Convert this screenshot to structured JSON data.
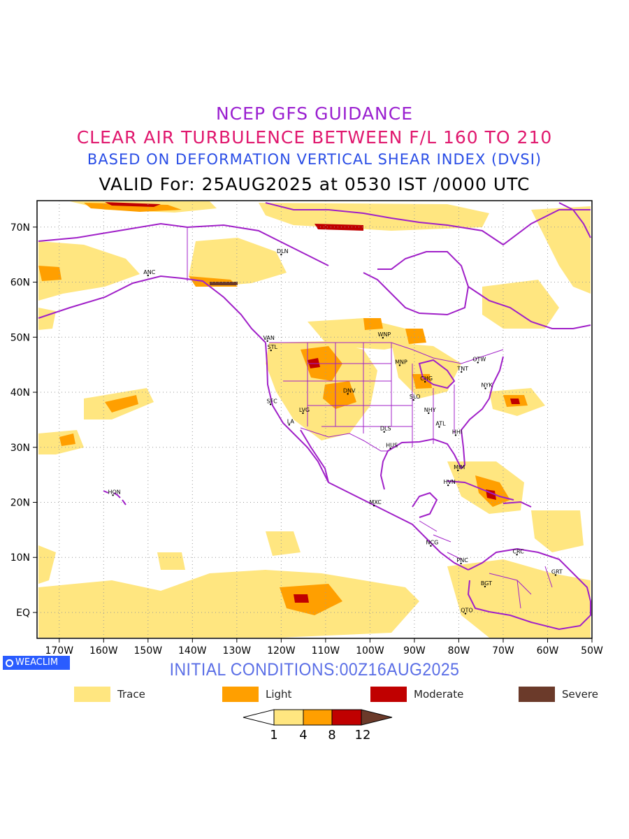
{
  "titles": {
    "line1": "NCEP GFS GUIDANCE",
    "line2": "CLEAR AIR TURBULENCE BETWEEN F/L 160 TO 210",
    "line3": "BASED ON DEFORMATION VERTICAL SHEAR INDEX (DVSI)",
    "line4": "VALID For: 25AUG2025 at 0530 IST /0000 UTC"
  },
  "map": {
    "lat_labels": [
      "70N",
      "60N",
      "50N",
      "40N",
      "30N",
      "20N",
      "10N",
      "EQ"
    ],
    "lon_labels": [
      "170W",
      "160W",
      "150W",
      "140W",
      "130W",
      "120W",
      "110W",
      "100W",
      "90W",
      "80W",
      "70W",
      "60W",
      "50W"
    ],
    "cities": [
      {
        "name": "DLN",
        "lon": -120.0,
        "lat": 65.0
      },
      {
        "name": "ANC",
        "lon": -150.0,
        "lat": 61.2
      },
      {
        "name": "VAN",
        "lon": -123.1,
        "lat": 49.3
      },
      {
        "name": "STL",
        "lon": -122.3,
        "lat": 47.6
      },
      {
        "name": "WNP",
        "lon": -97.1,
        "lat": 49.9
      },
      {
        "name": "OTW",
        "lon": -75.7,
        "lat": 45.4
      },
      {
        "name": "MNP",
        "lon": -93.3,
        "lat": 44.9
      },
      {
        "name": "TNT",
        "lon": -79.4,
        "lat": 43.7
      },
      {
        "name": "CHG",
        "lon": -87.6,
        "lat": 41.9
      },
      {
        "name": "NYK",
        "lon": -74.0,
        "lat": 40.7
      },
      {
        "name": "SFC",
        "lon": -122.4,
        "lat": 37.8
      },
      {
        "name": "DNV",
        "lon": -105.0,
        "lat": 39.7
      },
      {
        "name": "SLO",
        "lon": -90.2,
        "lat": 38.6
      },
      {
        "name": "LVG",
        "lon": -115.1,
        "lat": 36.2
      },
      {
        "name": "NHY",
        "lon": -86.8,
        "lat": 36.2
      },
      {
        "name": "LA",
        "lon": -118.2,
        "lat": 34.1
      },
      {
        "name": "ATL",
        "lon": -84.4,
        "lat": 33.7
      },
      {
        "name": "DLS",
        "lon": -96.8,
        "lat": 32.8
      },
      {
        "name": "HHI",
        "lon": -80.7,
        "lat": 32.2
      },
      {
        "name": "HUS",
        "lon": -95.4,
        "lat": 29.8
      },
      {
        "name": "MIM",
        "lon": -80.2,
        "lat": 25.8
      },
      {
        "name": "HVN",
        "lon": -82.4,
        "lat": 23.1
      },
      {
        "name": "HON",
        "lon": -157.9,
        "lat": 21.3
      },
      {
        "name": "MXC",
        "lon": -99.1,
        "lat": 19.4
      },
      {
        "name": "NCG",
        "lon": -86.3,
        "lat": 12.1
      },
      {
        "name": "CRC",
        "lon": -66.9,
        "lat": 10.5
      },
      {
        "name": "PNC",
        "lon": -79.5,
        "lat": 8.9
      },
      {
        "name": "GRT",
        "lon": -58.2,
        "lat": 6.8
      },
      {
        "name": "BGT",
        "lon": -74.1,
        "lat": 4.7
      },
      {
        "name": "QTO",
        "lon": -78.5,
        "lat": -0.2
      }
    ]
  },
  "branding": {
    "logo_text": "WEACLIM"
  },
  "initial_conditions": "INITIAL CONDITIONS:00Z16AUG2025",
  "legend": [
    {
      "label": "Trace",
      "color": "#ffe680"
    },
    {
      "label": "Light",
      "color": "#ff9f00"
    },
    {
      "label": "Moderate",
      "color": "#c00000"
    },
    {
      "label": "Severe",
      "color": "#6b3a2a"
    }
  ],
  "colorbar": {
    "labels": [
      "1",
      "4",
      "8",
      "12"
    ],
    "colors": [
      "#ffffff",
      "#ffe680",
      "#ff9f00",
      "#c00000",
      "#6b3a2a"
    ]
  },
  "colors": {
    "coastline": "#a020c8",
    "grid": "#999999"
  }
}
